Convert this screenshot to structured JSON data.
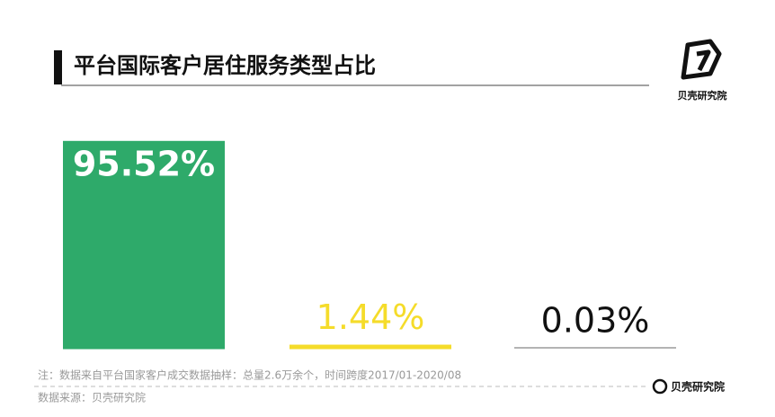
{
  "chart_data": {
    "type": "bar",
    "title": "平台国际客户居住服务类型占比",
    "categories": [
      null,
      null,
      null
    ],
    "values": [
      95.52,
      1.44,
      0.03
    ],
    "value_labels": [
      "95.52%",
      "1.44%",
      "0.03%"
    ],
    "colors": [
      "#2eaa6a",
      "#f5dc2a",
      "#9a9a9a"
    ]
  },
  "logo": "贝壳研究院",
  "footer": {
    "note": "注：数据来自平台国家客户成交数据抽样：总量2.6万余个，时间跨度2017/01-2020/08",
    "source": "数据来源：贝壳研究院",
    "logo": "贝壳研究院"
  }
}
